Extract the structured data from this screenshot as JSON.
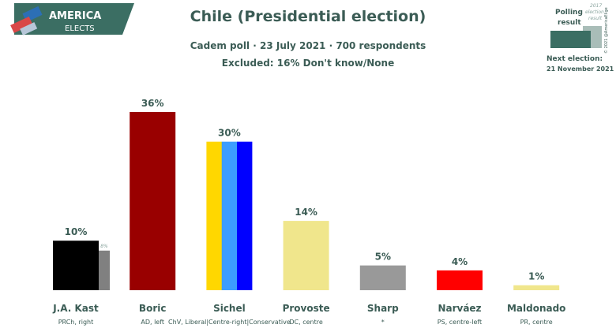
{
  "logo": {
    "line1": "AMERICA",
    "line2": "ELECTS"
  },
  "header": {
    "title": "Chile (Presidential election)",
    "subtitle": "Cadem poll · 23 July 2021 · 700 respondents",
    "note": "Excluded: 16% Don't know/None"
  },
  "legend": {
    "polling_label_1": "Polling",
    "polling_label_2": "result",
    "prev_label_1": "2017",
    "prev_label_2": "election",
    "prev_label_3": "result",
    "next_label": "Next election:",
    "next_date": "21 November 2021",
    "copyright": "© 2021 @AmericaElige"
  },
  "chart_data": {
    "type": "bar",
    "ylim": [
      0,
      38
    ],
    "candidates": [
      {
        "name": "J.A. Kast",
        "party": "PRCh, right",
        "value": 10,
        "label": "10%",
        "colors": [
          "#000000"
        ],
        "previous": 8,
        "previous_label": "8%",
        "previous_color": "#808080"
      },
      {
        "name": "Boric",
        "party": "AD, left",
        "value": 36,
        "label": "36%",
        "colors": [
          "#990000"
        ]
      },
      {
        "name": "Sichel",
        "party": "ChV, Liberal|Centre-right|Conservative",
        "value": 30,
        "label": "30%",
        "colors": [
          "#ffd700",
          "#3c9dff",
          "#0000ff"
        ]
      },
      {
        "name": "Provoste",
        "party": "DC, centre",
        "value": 14,
        "label": "14%",
        "colors": [
          "#f0e68c"
        ]
      },
      {
        "name": "Sharp",
        "party": "*",
        "value": 5,
        "label": "5%",
        "colors": [
          "#999999"
        ]
      },
      {
        "name": "Narváez",
        "party": "PS, centre-left",
        "value": 4,
        "label": "4%",
        "colors": [
          "#ff0000"
        ]
      },
      {
        "name": "Maldonado",
        "party": "PR, centre",
        "value": 1,
        "label": "1%",
        "colors": [
          "#f0e68c"
        ]
      }
    ]
  },
  "colors": {
    "text": "#3b5c55",
    "logo_bg": "#3b6e63",
    "legend_main": "#3b6e63",
    "legend_prev": "#a9bdb8"
  }
}
